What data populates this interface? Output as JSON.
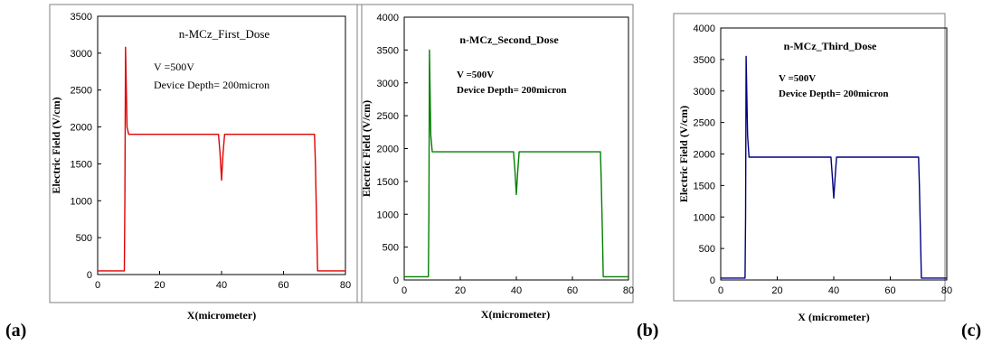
{
  "chart_data": [
    {
      "type": "line",
      "panel_label": "(a)",
      "title": "n-MCz_First_Dose",
      "annotations": [
        "V =500V",
        "Device Depth= 200micron"
      ],
      "xlabel": "X(micrometer)",
      "ylabel": "Electric Field (V/cm)",
      "xlim": [
        0,
        80
      ],
      "ylim": [
        0,
        3500
      ],
      "xticks": [
        "0",
        "20",
        "40",
        "60",
        "80"
      ],
      "yticks": [
        "0",
        "500",
        "1000",
        "1500",
        "2000",
        "2500",
        "3000",
        "3500"
      ],
      "color": "#e00000",
      "series": [
        {
          "x": [
            0,
            8.6,
            8.8,
            9.0,
            9.5,
            10.0,
            10.5,
            39.0,
            39.5,
            40.0,
            40.5,
            41.0,
            70.0,
            70.3,
            70.7,
            71.0,
            80
          ],
          "y": [
            50,
            50,
            1000,
            3080,
            2000,
            1900,
            1900,
            1900,
            1650,
            1280,
            1650,
            1900,
            1900,
            1500,
            700,
            50,
            50
          ]
        }
      ]
    },
    {
      "type": "line",
      "panel_label": "(b)",
      "title": "n-MCz_Second_Dose",
      "annotations": [
        "V =500V",
        "Device Depth= 200micron"
      ],
      "xlabel": "X(micrometer)",
      "ylabel": "Electric Field (V/cm)",
      "xlim": [
        0,
        80
      ],
      "ylim": [
        0,
        4000
      ],
      "xticks": [
        "0",
        "20",
        "40",
        "60",
        "80"
      ],
      "yticks": [
        "0",
        "500",
        "1000",
        "1500",
        "2000",
        "2500",
        "3000",
        "3500",
        "4000"
      ],
      "color": "#008000",
      "series": [
        {
          "x": [
            0,
            8.6,
            8.8,
            9.0,
            9.5,
            10.0,
            10.5,
            39.0,
            39.5,
            40.0,
            40.5,
            41.0,
            70.0,
            70.3,
            70.7,
            71.0,
            80
          ],
          "y": [
            50,
            50,
            1000,
            3500,
            2200,
            1950,
            1950,
            1950,
            1650,
            1300,
            1650,
            1950,
            1950,
            1500,
            700,
            50,
            50
          ]
        }
      ]
    },
    {
      "type": "line",
      "panel_label": "(c)",
      "title": "n-MCz_Third_Dose",
      "annotations": [
        "V =500V",
        "Device Depth= 200micron"
      ],
      "xlabel": "X (micrometer)",
      "ylabel": "Electric Field (V/cm)",
      "xlim": [
        0,
        80
      ],
      "ylim": [
        0,
        4000
      ],
      "xticks": [
        "0",
        "20",
        "40",
        "60",
        "80"
      ],
      "yticks": [
        "0",
        "500",
        "1000",
        "1500",
        "2000",
        "2500",
        "3000",
        "3500",
        "4000"
      ],
      "color": "#000080",
      "series": [
        {
          "x": [
            0,
            8.6,
            8.8,
            9.0,
            9.5,
            10.0,
            10.5,
            39.0,
            39.5,
            40.0,
            40.5,
            41.0,
            70.0,
            70.3,
            70.7,
            71.0,
            80
          ],
          "y": [
            30,
            30,
            1000,
            3550,
            2300,
            1950,
            1950,
            1950,
            1650,
            1300,
            1650,
            1950,
            1950,
            1500,
            700,
            30,
            30
          ]
        }
      ]
    }
  ]
}
